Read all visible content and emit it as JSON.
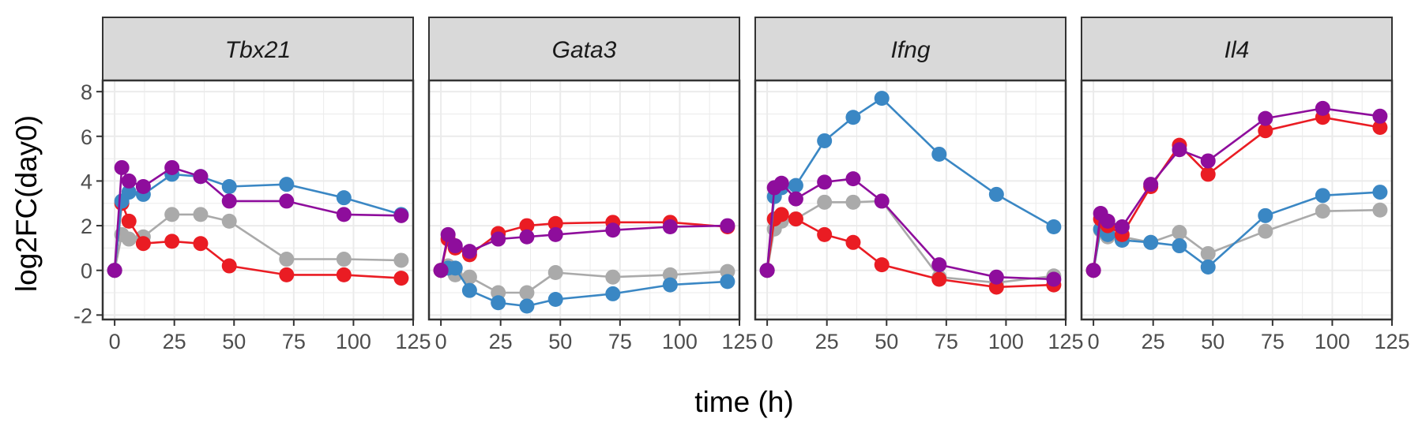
{
  "chart_data": {
    "type": "line",
    "xlabel": "time (h)",
    "ylabel": "log2FC(day0)",
    "xlim": [
      -5,
      125
    ],
    "ylim": [
      -2.2,
      8.5
    ],
    "x_ticks": [
      0,
      25,
      50,
      75,
      100,
      125
    ],
    "y_ticks": [
      -2,
      0,
      2,
      4,
      6,
      8
    ],
    "tick_labels_y": [
      "-2",
      "0",
      "2",
      "4",
      "6",
      "8"
    ],
    "grid": true,
    "legend": "none",
    "colors": {
      "blue": "#3a87c4",
      "purple": "#8e0d9c",
      "grey": "#aaaaaa",
      "red": "#ea1c23",
      "strip_fill": "#d9d9d9",
      "grid": "#ebebeb"
    },
    "panels": [
      {
        "title": "Tbx21",
        "series": [
          {
            "color": "grey",
            "points": [
              [
                0,
                0
              ],
              [
                3,
                1.6
              ],
              [
                6,
                1.4
              ],
              [
                12,
                1.5
              ],
              [
                24,
                2.5
              ],
              [
                36,
                2.5
              ],
              [
                48,
                2.2
              ],
              [
                72,
                0.5
              ],
              [
                96,
                0.5
              ],
              [
                120,
                0.45
              ]
            ]
          },
          {
            "color": "red",
            "points": [
              [
                0,
                0
              ],
              [
                3,
                3.0
              ],
              [
                6,
                2.2
              ],
              [
                12,
                1.2
              ],
              [
                24,
                1.3
              ],
              [
                36,
                1.2
              ],
              [
                48,
                0.2
              ],
              [
                72,
                -0.2
              ],
              [
                96,
                -0.2
              ],
              [
                120,
                -0.35
              ]
            ]
          },
          {
            "color": "blue",
            "points": [
              [
                0,
                0
              ],
              [
                3,
                3.1
              ],
              [
                6,
                3.5
              ],
              [
                12,
                3.4
              ],
              [
                24,
                4.3
              ],
              [
                36,
                4.2
              ],
              [
                48,
                3.75
              ],
              [
                72,
                3.85
              ],
              [
                96,
                3.25
              ],
              [
                120,
                2.5
              ]
            ]
          },
          {
            "color": "purple",
            "points": [
              [
                0,
                0
              ],
              [
                3,
                4.6
              ],
              [
                6,
                4.0
              ],
              [
                12,
                3.75
              ],
              [
                24,
                4.6
              ],
              [
                36,
                4.2
              ],
              [
                48,
                3.1
              ],
              [
                72,
                3.1
              ],
              [
                96,
                2.5
              ],
              [
                120,
                2.45
              ]
            ]
          }
        ]
      },
      {
        "title": "Gata3",
        "series": [
          {
            "color": "grey",
            "points": [
              [
                0,
                0
              ],
              [
                3,
                0.2
              ],
              [
                6,
                -0.2
              ],
              [
                12,
                -0.3
              ],
              [
                24,
                -1.0
              ],
              [
                36,
                -1.0
              ],
              [
                48,
                -0.1
              ],
              [
                72,
                -0.3
              ],
              [
                96,
                -0.2
              ],
              [
                120,
                -0.05
              ]
            ]
          },
          {
            "color": "blue",
            "points": [
              [
                0,
                0
              ],
              [
                3,
                0.1
              ],
              [
                6,
                0.1
              ],
              [
                12,
                -0.9
              ],
              [
                24,
                -1.45
              ],
              [
                36,
                -1.6
              ],
              [
                48,
                -1.3
              ],
              [
                72,
                -1.05
              ],
              [
                96,
                -0.65
              ],
              [
                120,
                -0.5
              ]
            ]
          },
          {
            "color": "red",
            "points": [
              [
                0,
                0
              ],
              [
                3,
                1.4
              ],
              [
                6,
                1.0
              ],
              [
                12,
                0.7
              ],
              [
                24,
                1.65
              ],
              [
                36,
                2.0
              ],
              [
                48,
                2.1
              ],
              [
                72,
                2.15
              ],
              [
                96,
                2.15
              ],
              [
                120,
                1.95
              ]
            ]
          },
          {
            "color": "purple",
            "points": [
              [
                0,
                0
              ],
              [
                3,
                1.6
              ],
              [
                6,
                1.1
              ],
              [
                12,
                0.85
              ],
              [
                24,
                1.4
              ],
              [
                36,
                1.5
              ],
              [
                48,
                1.6
              ],
              [
                72,
                1.8
              ],
              [
                96,
                1.95
              ],
              [
                120,
                2.0
              ]
            ]
          }
        ]
      },
      {
        "title": "Ifng",
        "series": [
          {
            "color": "grey",
            "points": [
              [
                0,
                0
              ],
              [
                3,
                1.85
              ],
              [
                6,
                2.2
              ],
              [
                12,
                2.3
              ],
              [
                24,
                3.05
              ],
              [
                36,
                3.05
              ],
              [
                48,
                3.1
              ],
              [
                72,
                -0.3
              ],
              [
                96,
                -0.55
              ],
              [
                120,
                -0.25
              ]
            ]
          },
          {
            "color": "red",
            "points": [
              [
                0,
                0
              ],
              [
                3,
                2.3
              ],
              [
                6,
                2.5
              ],
              [
                12,
                2.3
              ],
              [
                24,
                1.6
              ],
              [
                36,
                1.25
              ],
              [
                48,
                0.25
              ],
              [
                72,
                -0.4
              ],
              [
                96,
                -0.75
              ],
              [
                120,
                -0.65
              ]
            ]
          },
          {
            "color": "blue",
            "points": [
              [
                0,
                0
              ],
              [
                3,
                3.3
              ],
              [
                6,
                3.7
              ],
              [
                12,
                3.8
              ],
              [
                24,
                5.8
              ],
              [
                36,
                6.85
              ],
              [
                48,
                7.7
              ],
              [
                72,
                5.2
              ],
              [
                96,
                3.4
              ],
              [
                120,
                1.95
              ]
            ]
          },
          {
            "color": "purple",
            "points": [
              [
                0,
                0
              ],
              [
                3,
                3.7
              ],
              [
                6,
                3.9
              ],
              [
                12,
                3.2
              ],
              [
                24,
                3.95
              ],
              [
                36,
                4.1
              ],
              [
                48,
                3.1
              ],
              [
                72,
                0.25
              ],
              [
                96,
                -0.3
              ],
              [
                120,
                -0.4
              ]
            ]
          }
        ]
      },
      {
        "title": "Il4",
        "series": [
          {
            "color": "grey",
            "points": [
              [
                0,
                0
              ],
              [
                3,
                1.8
              ],
              [
                6,
                1.5
              ],
              [
                12,
                1.5
              ],
              [
                24,
                1.25
              ],
              [
                36,
                1.7
              ],
              [
                48,
                0.75
              ],
              [
                72,
                1.75
              ],
              [
                96,
                2.65
              ],
              [
                120,
                2.7
              ]
            ]
          },
          {
            "color": "blue",
            "points": [
              [
                0,
                0
              ],
              [
                3,
                1.85
              ],
              [
                6,
                1.6
              ],
              [
                12,
                1.35
              ],
              [
                24,
                1.25
              ],
              [
                36,
                1.1
              ],
              [
                48,
                0.15
              ],
              [
                72,
                2.45
              ],
              [
                96,
                3.35
              ],
              [
                120,
                3.5
              ]
            ]
          },
          {
            "color": "red",
            "points": [
              [
                0,
                0
              ],
              [
                3,
                2.3
              ],
              [
                6,
                2.0
              ],
              [
                12,
                1.6
              ],
              [
                24,
                3.75
              ],
              [
                36,
                5.6
              ],
              [
                48,
                4.3
              ],
              [
                72,
                6.25
              ],
              [
                96,
                6.85
              ],
              [
                120,
                6.4
              ]
            ]
          },
          {
            "color": "purple",
            "points": [
              [
                0,
                0
              ],
              [
                3,
                2.55
              ],
              [
                6,
                2.2
              ],
              [
                12,
                1.95
              ],
              [
                24,
                3.85
              ],
              [
                36,
                5.4
              ],
              [
                48,
                4.9
              ],
              [
                72,
                6.8
              ],
              [
                96,
                7.25
              ],
              [
                120,
                6.9
              ]
            ]
          }
        ]
      }
    ]
  }
}
